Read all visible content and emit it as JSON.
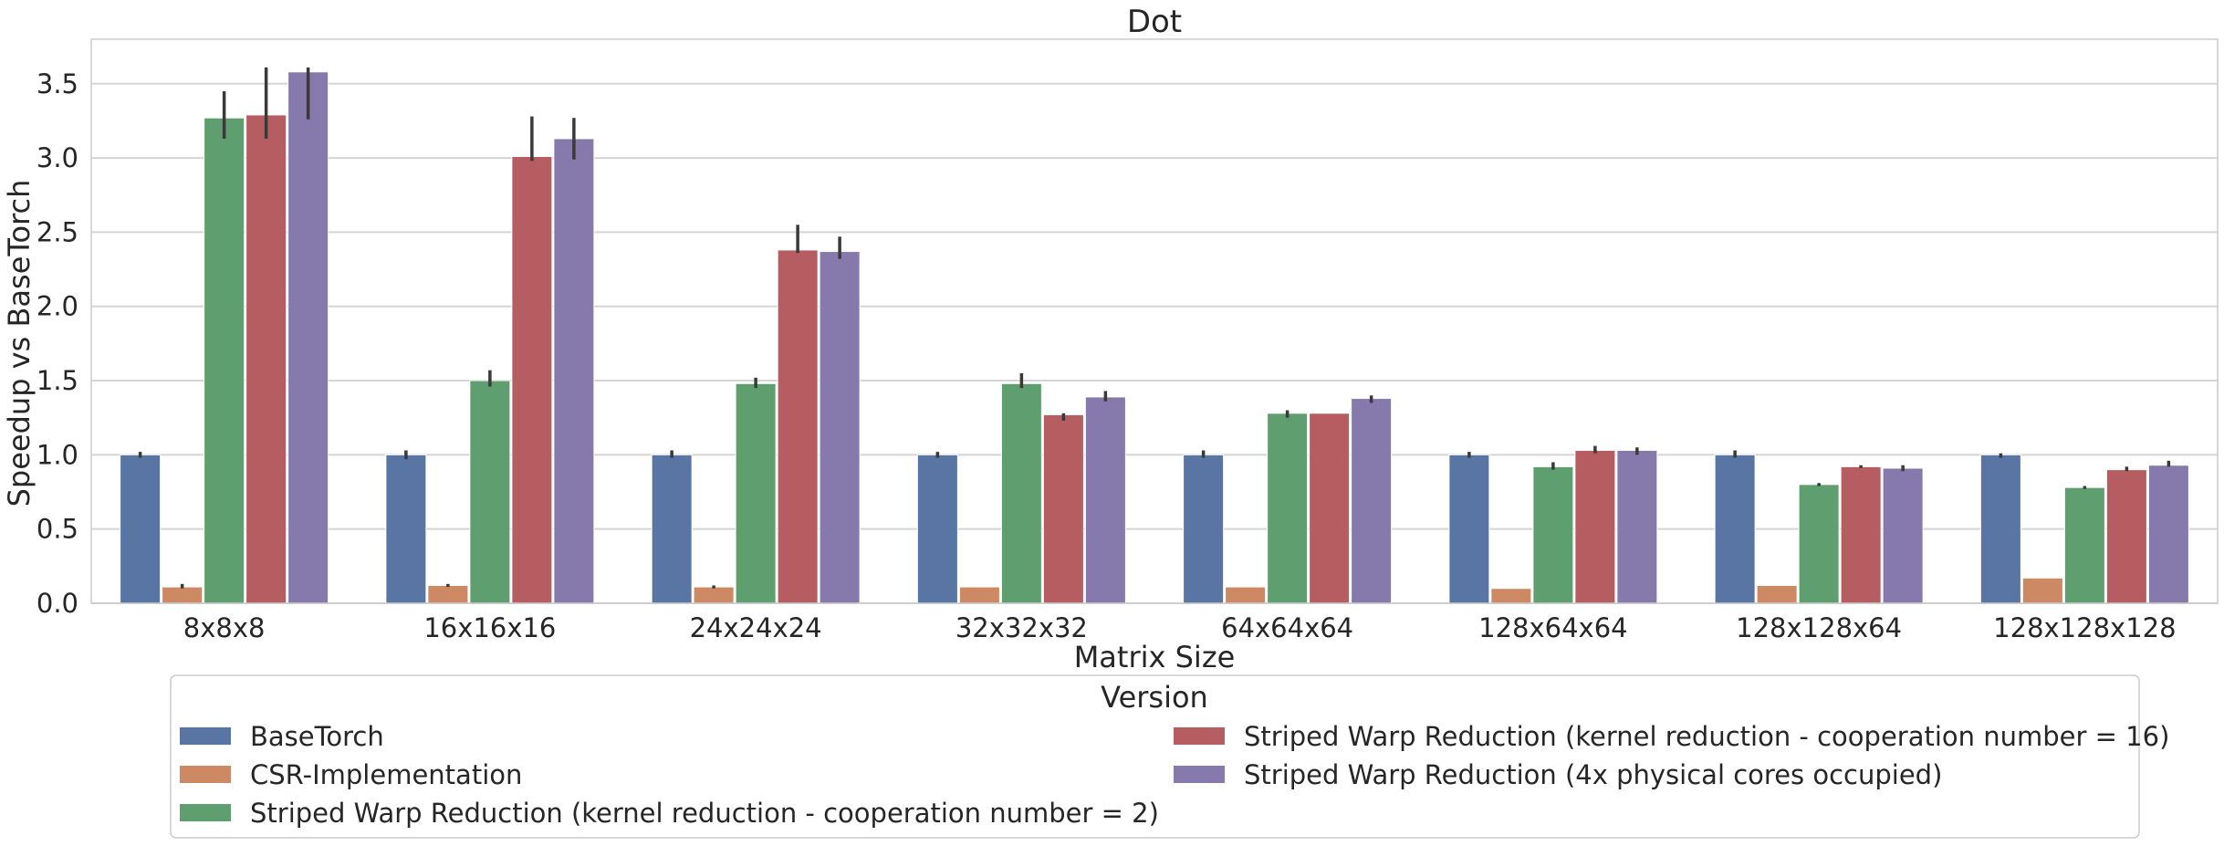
{
  "chart_data": {
    "type": "bar",
    "title": "Dot",
    "xlabel": "Matrix Size",
    "ylabel": "Speedup vs BaseTorch",
    "ylim": [
      0,
      3.8
    ],
    "yticks": [
      "0.0",
      "0.5",
      "1.0",
      "1.5",
      "2.0",
      "2.5",
      "3.0",
      "3.5"
    ],
    "grid": true,
    "legend_title": "Version",
    "legend_placement": "bottom",
    "categories": [
      "8x8x8",
      "16x16x16",
      "24x24x24",
      "32x32x32",
      "64x64x64",
      "128x64x64",
      "128x128x64",
      "128x128x128"
    ],
    "series": [
      {
        "name": "BaseTorch",
        "color": "#5875a4",
        "values": [
          1.0,
          1.0,
          1.0,
          1.0,
          1.0,
          1.0,
          1.0,
          1.0
        ],
        "err_low": [
          0.98,
          0.97,
          0.98,
          0.98,
          0.98,
          0.98,
          0.98,
          0.98
        ],
        "err_high": [
          1.02,
          1.03,
          1.03,
          1.02,
          1.03,
          1.02,
          1.03,
          1.01
        ]
      },
      {
        "name": "CSR-Implementation",
        "color": "#cc8963",
        "values": [
          0.11,
          0.12,
          0.11,
          0.11,
          0.11,
          0.1,
          0.12,
          0.17
        ],
        "err_low": [
          0.1,
          0.11,
          0.1,
          0.11,
          0.11,
          0.1,
          0.12,
          0.17
        ],
        "err_high": [
          0.13,
          0.13,
          0.12,
          0.11,
          0.11,
          0.1,
          0.12,
          0.17
        ]
      },
      {
        "name": "Striped Warp Reduction (kernel reduction - cooperation number = 2)",
        "color": "#5f9e6e",
        "values": [
          3.27,
          1.5,
          1.48,
          1.48,
          1.28,
          0.92,
          0.8,
          0.78
        ],
        "err_low": [
          3.13,
          1.46,
          1.45,
          1.45,
          1.25,
          0.9,
          0.79,
          0.77
        ],
        "err_high": [
          3.45,
          1.57,
          1.52,
          1.55,
          1.3,
          0.95,
          0.81,
          0.79
        ]
      },
      {
        "name": "Striped Warp Reduction (kernel reduction - cooperation number = 16)",
        "color": "#b55d60",
        "values": [
          3.29,
          3.01,
          2.38,
          1.27,
          1.28,
          1.03,
          0.92,
          0.9
        ],
        "err_low": [
          3.13,
          2.98,
          2.36,
          1.23,
          1.28,
          1.01,
          0.91,
          0.89
        ],
        "err_high": [
          3.61,
          3.28,
          2.55,
          1.28,
          1.28,
          1.06,
          0.93,
          0.92
        ]
      },
      {
        "name": "Striped Warp Reduction (4x physical cores occupied)",
        "color": "#857aab",
        "values": [
          3.58,
          3.13,
          2.37,
          1.39,
          1.38,
          1.03,
          0.91,
          0.93
        ],
        "err_low": [
          3.26,
          2.99,
          2.32,
          1.36,
          1.35,
          1.0,
          0.89,
          0.92
        ],
        "err_high": [
          3.61,
          3.27,
          2.47,
          1.43,
          1.4,
          1.05,
          0.93,
          0.96
        ]
      }
    ]
  }
}
